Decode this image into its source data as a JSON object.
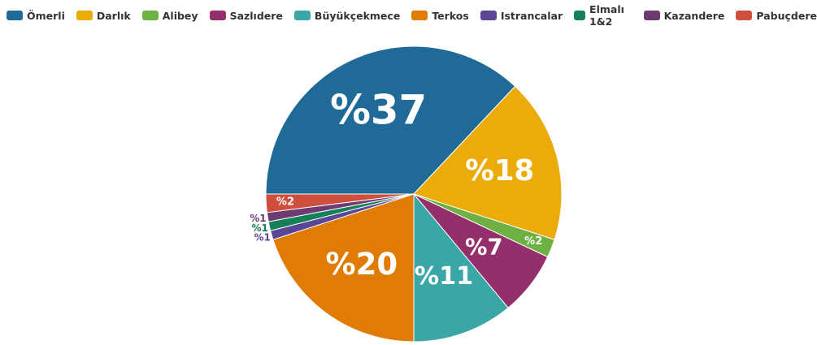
{
  "chart_data": {
    "type": "pie",
    "categories": [
      "Ömerli",
      "Darlık",
      "Alibey",
      "Sazlıdere",
      "Büyükçekmece",
      "Terkos",
      "Istrancalar",
      "Elmalı 1&2",
      "Kazandere",
      "Pabuçdere"
    ],
    "values": [
      37,
      18,
      2,
      7,
      11,
      20,
      1,
      1,
      1,
      2
    ],
    "value_labels": [
      "%37",
      "%18",
      "%2",
      "%7",
      "%11",
      "%20",
      "%1",
      "%1",
      "%1",
      "%2"
    ],
    "colors": [
      "#1f6a96",
      "#ebac0b",
      "#6fb043",
      "#952f6b",
      "#3aa7a6",
      "#e07b06",
      "#5b4596",
      "#168056",
      "#6e3a72",
      "#cf4f3c"
    ],
    "legend": "top"
  }
}
